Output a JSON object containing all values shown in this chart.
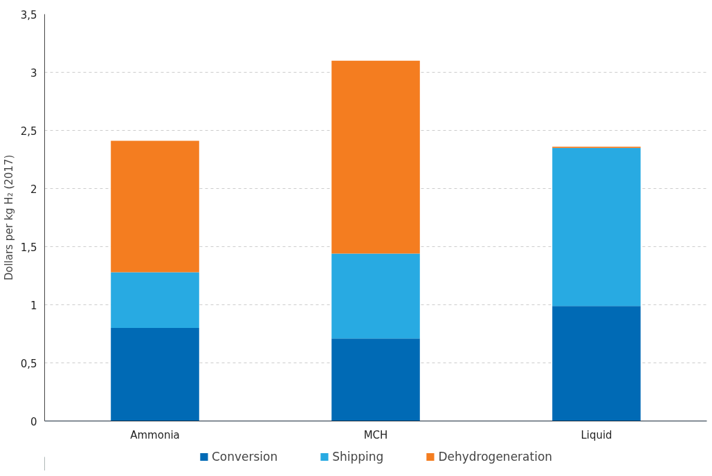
{
  "chart_data": {
    "type": "bar",
    "stacked": true,
    "categories": [
      "Ammonia",
      "MCH",
      "Liquid"
    ],
    "series": [
      {
        "name": "Conversion",
        "color": "#006ab5",
        "values": [
          0.8,
          0.71,
          0.99
        ]
      },
      {
        "name": "Shipping",
        "color": "#28aae2",
        "values": [
          0.48,
          0.73,
          1.36
        ]
      },
      {
        "name": "Dehydrogeneration",
        "color": "#f47d20",
        "values": [
          1.13,
          1.66,
          0.01
        ]
      }
    ],
    "ylabel": "Dollars per kg H₂ (2017)",
    "ylim": [
      0,
      3.5
    ],
    "yticks": [
      0,
      {
        "value": 0.5,
        "label": "0,5"
      },
      1,
      {
        "value": 1.5,
        "label": "1,5"
      },
      2,
      {
        "value": 2.5,
        "label": "2,5"
      },
      3,
      {
        "value": 3.5,
        "label": "3,5"
      }
    ],
    "grid": "y",
    "legend": "bottom"
  }
}
